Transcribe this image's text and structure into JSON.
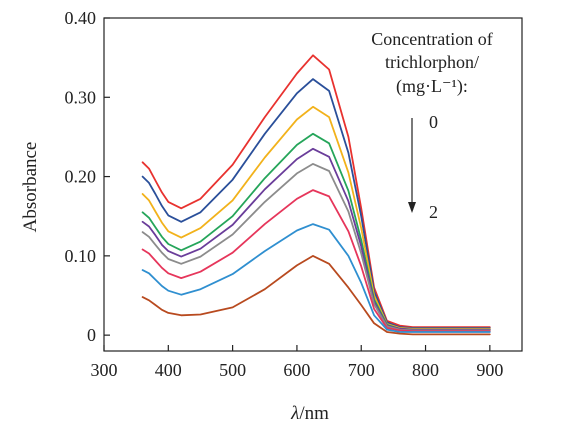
{
  "chart_data": {
    "type": "line",
    "title": "",
    "xlabel_italic": "λ",
    "xlabel_rest": "/nm",
    "ylabel": "Absorbance",
    "xlim": [
      300,
      950
    ],
    "ylim": [
      -0.02,
      0.4
    ],
    "x_ticks": [
      300,
      400,
      500,
      600,
      700,
      800,
      900
    ],
    "x_tick_labels": [
      "300",
      "400",
      "500",
      "600",
      "700",
      "800",
      "900"
    ],
    "y_ticks": [
      0,
      0.1,
      0.2,
      0.3,
      0.4
    ],
    "y_tick_labels": [
      "0",
      "0.10",
      "0.20",
      "0.30",
      "0.40"
    ],
    "grid": false,
    "legend": {
      "lines": [
        "Concentration of",
        "trichlorphon/",
        "(mg·L⁻¹):"
      ],
      "arrow_start_label": "0",
      "arrow_end_label": "2",
      "placement": "top-right"
    },
    "x": [
      360,
      370,
      380,
      390,
      400,
      420,
      450,
      500,
      550,
      600,
      625,
      650,
      680,
      700,
      720,
      740,
      760,
      780,
      800,
      850,
      900
    ],
    "series": [
      {
        "color": "#e8322f",
        "values": [
          0.218,
          0.21,
          0.195,
          0.18,
          0.168,
          0.16,
          0.172,
          0.215,
          0.275,
          0.33,
          0.353,
          0.335,
          0.25,
          0.16,
          0.06,
          0.018,
          0.012,
          0.01,
          0.01,
          0.01,
          0.01
        ]
      },
      {
        "color": "#2a4f9a",
        "values": [
          0.2,
          0.192,
          0.178,
          0.163,
          0.151,
          0.143,
          0.155,
          0.196,
          0.254,
          0.305,
          0.323,
          0.308,
          0.23,
          0.15,
          0.055,
          0.016,
          0.01,
          0.009,
          0.009,
          0.009,
          0.009
        ]
      },
      {
        "color": "#f2b21b",
        "values": [
          0.178,
          0.17,
          0.156,
          0.142,
          0.131,
          0.123,
          0.135,
          0.17,
          0.224,
          0.272,
          0.288,
          0.275,
          0.205,
          0.135,
          0.05,
          0.014,
          0.009,
          0.008,
          0.008,
          0.008,
          0.008
        ]
      },
      {
        "color": "#25a55a",
        "values": [
          0.155,
          0.148,
          0.136,
          0.124,
          0.115,
          0.107,
          0.118,
          0.15,
          0.198,
          0.24,
          0.254,
          0.242,
          0.182,
          0.12,
          0.045,
          0.013,
          0.008,
          0.007,
          0.007,
          0.007,
          0.007
        ]
      },
      {
        "color": "#6a3d9a",
        "values": [
          0.143,
          0.137,
          0.126,
          0.114,
          0.106,
          0.099,
          0.109,
          0.139,
          0.184,
          0.222,
          0.235,
          0.225,
          0.169,
          0.112,
          0.042,
          0.012,
          0.008,
          0.007,
          0.007,
          0.007,
          0.007
        ]
      },
      {
        "color": "#8c8c8c",
        "values": [
          0.13,
          0.124,
          0.114,
          0.104,
          0.096,
          0.09,
          0.099,
          0.127,
          0.168,
          0.204,
          0.216,
          0.207,
          0.156,
          0.103,
          0.039,
          0.011,
          0.007,
          0.006,
          0.006,
          0.006,
          0.006
        ]
      },
      {
        "color": "#e6365b",
        "values": [
          0.108,
          0.103,
          0.094,
          0.085,
          0.078,
          0.072,
          0.08,
          0.104,
          0.14,
          0.172,
          0.183,
          0.175,
          0.131,
          0.087,
          0.033,
          0.009,
          0.006,
          0.005,
          0.005,
          0.005,
          0.005
        ]
      },
      {
        "color": "#2f8fd0",
        "values": [
          0.082,
          0.078,
          0.07,
          0.062,
          0.056,
          0.051,
          0.058,
          0.077,
          0.106,
          0.132,
          0.14,
          0.133,
          0.1,
          0.066,
          0.025,
          0.007,
          0.004,
          0.004,
          0.004,
          0.004,
          0.004
        ]
      },
      {
        "color": "#b84a1f",
        "values": [
          0.048,
          0.044,
          0.038,
          0.032,
          0.028,
          0.025,
          0.026,
          0.035,
          0.058,
          0.088,
          0.1,
          0.09,
          0.06,
          0.038,
          0.015,
          0.004,
          0.002,
          0.001,
          0.001,
          0.001,
          0.001
        ]
      }
    ]
  }
}
